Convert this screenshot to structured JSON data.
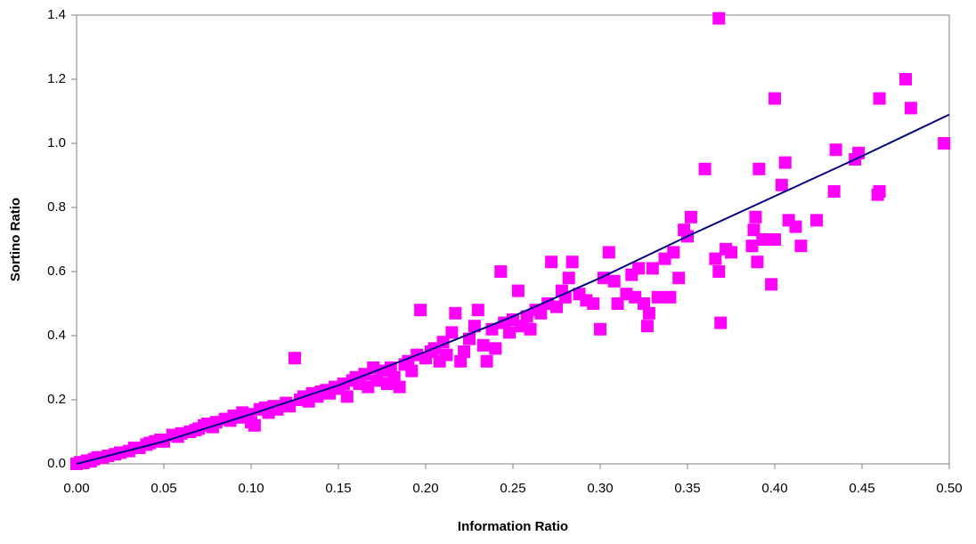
{
  "chart_data": {
    "type": "scatter",
    "x_label": "Information Ratio",
    "y_label": "Sortino Ratio",
    "color": "#ff00ff",
    "xlim": [
      0,
      0.5
    ],
    "ylim": [
      0,
      1.4
    ],
    "xticks": [
      {
        "value": 0,
        "label": "0.00"
      },
      {
        "value": 0.05,
        "label": "0.05"
      },
      {
        "value": 0.1,
        "label": "0.10"
      },
      {
        "value": 0.15,
        "label": "0.15"
      },
      {
        "value": 0.2,
        "label": "0.20"
      },
      {
        "value": 0.25,
        "label": "0.25"
      },
      {
        "value": 0.3,
        "label": "0.30"
      },
      {
        "value": 0.35,
        "label": "0.35"
      },
      {
        "value": 0.4,
        "label": "0.40"
      },
      {
        "value": 0.45,
        "label": "0.45"
      },
      {
        "value": 0.5,
        "label": "0.50"
      }
    ],
    "yticks": [
      {
        "value": 0,
        "label": "0.0"
      },
      {
        "value": 0.2,
        "label": "0.2"
      },
      {
        "value": 0.4,
        "label": "0.4"
      },
      {
        "value": 0.6,
        "label": "0.6"
      },
      {
        "value": 0.8,
        "label": "0.8"
      },
      {
        "value": 1,
        "label": "1.0"
      },
      {
        "value": 1.2,
        "label": "1.2"
      },
      {
        "value": 1.4,
        "label": "1.4"
      }
    ],
    "x": [
      0,
      0.002,
      0.004,
      0.006,
      0.008,
      0.01,
      0.012,
      0.015,
      0.018,
      0.022,
      0.025,
      0.03,
      0.033,
      0.036,
      0.04,
      0.042,
      0.045,
      0.048,
      0.05,
      0.055,
      0.058,
      0.06,
      0.065,
      0.068,
      0.07,
      0.073,
      0.075,
      0.078,
      0.08,
      0.085,
      0.088,
      0.09,
      0.093,
      0.095,
      0.098,
      0.1,
      0.102,
      0.105,
      0.108,
      0.11,
      0.113,
      0.115,
      0.12,
      0.122,
      0.125,
      0.128,
      0.13,
      0.133,
      0.135,
      0.138,
      0.14,
      0.143,
      0.145,
      0.148,
      0.15,
      0.153,
      0.155,
      0.158,
      0.16,
      0.162,
      0.165,
      0.167,
      0.17,
      0.172,
      0.175,
      0.178,
      0.18,
      0.182,
      0.185,
      0.188,
      0.19,
      0.192,
      0.195,
      0.197,
      0.2,
      0.203,
      0.205,
      0.208,
      0.21,
      0.212,
      0.215,
      0.217,
      0.22,
      0.222,
      0.225,
      0.228,
      0.23,
      0.233,
      0.235,
      0.238,
      0.24,
      0.243,
      0.245,
      0.248,
      0.25,
      0.253,
      0.255,
      0.258,
      0.26,
      0.263,
      0.266,
      0.27,
      0.272,
      0.275,
      0.278,
      0.28,
      0.282,
      0.284,
      0.288,
      0.292,
      0.296,
      0.3,
      0.302,
      0.305,
      0.308,
      0.31,
      0.315,
      0.318,
      0.32,
      0.322,
      0.325,
      0.327,
      0.328,
      0.33,
      0.333,
      0.337,
      0.34,
      0.342,
      0.345,
      0.348,
      0.35,
      0.352,
      0.36,
      0.366,
      0.368,
      0.368,
      0.369,
      0.372,
      0.375,
      0.387,
      0.388,
      0.389,
      0.39,
      0.391,
      0.393,
      0.398,
      0.4,
      0.4,
      0.404,
      0.406,
      0.408,
      0.412,
      0.415,
      0.424,
      0.434,
      0.435,
      0.446,
      0.448,
      0.459,
      0.46,
      0.46,
      0.475,
      0.478,
      0.497
    ],
    "y": [
      0,
      0.005,
      0.003,
      0.01,
      0.008,
      0.015,
      0.02,
      0.02,
      0.025,
      0.03,
      0.035,
      0.04,
      0.05,
      0.05,
      0.06,
      0.065,
      0.07,
      0.075,
      0.07,
      0.09,
      0.085,
      0.095,
      0.1,
      0.105,
      0.11,
      0.12,
      0.125,
      0.115,
      0.13,
      0.14,
      0.135,
      0.15,
      0.145,
      0.16,
      0.155,
      0.13,
      0.12,
      0.17,
      0.175,
      0.16,
      0.18,
      0.17,
      0.19,
      0.18,
      0.33,
      0.2,
      0.21,
      0.195,
      0.22,
      0.21,
      0.225,
      0.23,
      0.22,
      0.24,
      0.235,
      0.25,
      0.21,
      0.26,
      0.27,
      0.25,
      0.28,
      0.24,
      0.3,
      0.26,
      0.29,
      0.25,
      0.3,
      0.27,
      0.24,
      0.31,
      0.32,
      0.29,
      0.34,
      0.48,
      0.33,
      0.35,
      0.36,
      0.32,
      0.38,
      0.34,
      0.41,
      0.47,
      0.32,
      0.35,
      0.39,
      0.43,
      0.48,
      0.37,
      0.32,
      0.42,
      0.36,
      0.6,
      0.44,
      0.41,
      0.45,
      0.54,
      0.43,
      0.46,
      0.42,
      0.48,
      0.47,
      0.5,
      0.63,
      0.49,
      0.54,
      0.52,
      0.58,
      0.63,
      0.53,
      0.51,
      0.5,
      0.42,
      0.58,
      0.66,
      0.57,
      0.5,
      0.53,
      0.59,
      0.52,
      0.61,
      0.5,
      0.43,
      0.47,
      0.61,
      0.52,
      0.64,
      0.52,
      0.66,
      0.58,
      0.73,
      0.71,
      0.77,
      0.92,
      0.64,
      0.6,
      1.39,
      0.44,
      0.67,
      0.66,
      0.68,
      0.73,
      0.77,
      0.63,
      0.92,
      0.7,
      0.56,
      0.7,
      1.14,
      0.87,
      0.94,
      0.76,
      0.74,
      0.68,
      0.76,
      0.85,
      0.98,
      0.95,
      0.97,
      0.84,
      0.85,
      1.14,
      1.2,
      1.11,
      1.0
    ],
    "trendline": {
      "color": "#000080",
      "x": [
        0,
        0.05,
        0.1,
        0.15,
        0.2,
        0.25,
        0.3,
        0.35,
        0.4,
        0.45,
        0.5
      ],
      "y": [
        0,
        0.07,
        0.155,
        0.245,
        0.35,
        0.46,
        0.58,
        0.71,
        0.835,
        0.96,
        1.09
      ]
    }
  }
}
